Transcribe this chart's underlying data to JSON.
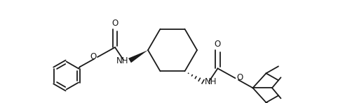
{
  "bg_color": "#ffffff",
  "line_color": "#1a1a1a",
  "line_width": 1.3,
  "font_size": 8.5,
  "figsize": [
    4.92,
    1.48
  ],
  "dpi": 100,
  "xlim": [
    0,
    9.84
  ],
  "ylim": [
    0,
    2.96
  ]
}
